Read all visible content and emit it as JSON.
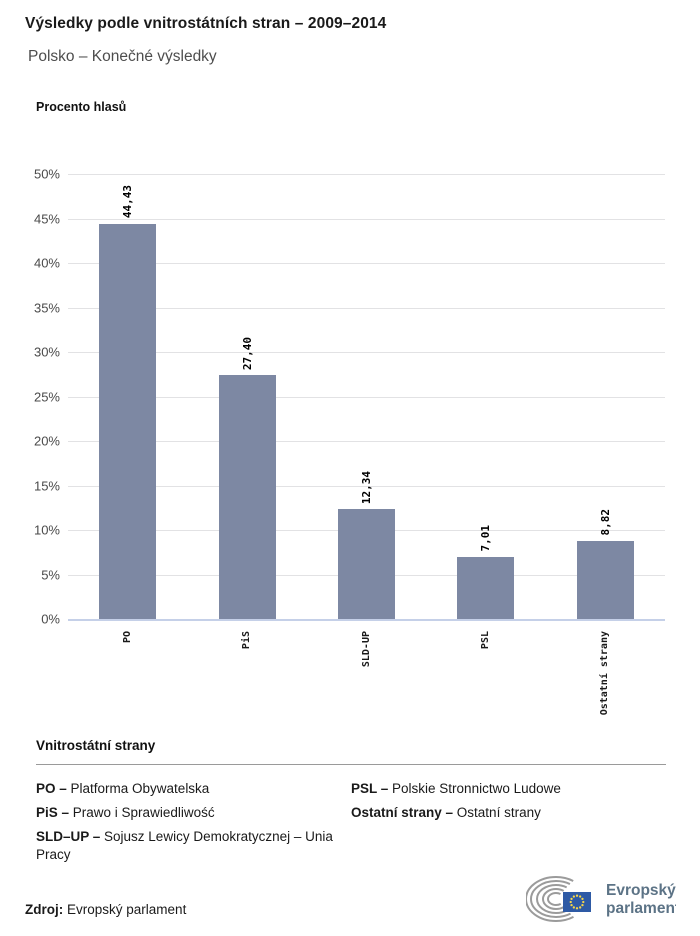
{
  "header": {
    "title": "Výsledky podle vnitrostátních stran – 2009–2014",
    "subtitle": "Polsko – Konečné výsledky"
  },
  "chart": {
    "axis_title": "Procento hlasů",
    "y_ticks": [
      "50%",
      "45%",
      "40%",
      "35%",
      "30%",
      "25%",
      "20%",
      "15%",
      "10%",
      "5%",
      "0%"
    ]
  },
  "chart_data": {
    "type": "bar",
    "categories": [
      "PO",
      "PiS",
      "SLD-UP",
      "PSL",
      "Ostatní strany"
    ],
    "values": [
      44.43,
      27.4,
      12.34,
      7.01,
      8.82
    ],
    "value_labels": [
      "44,43",
      "27,40",
      "12,34",
      "7,01",
      "8,82"
    ],
    "title": "Výsledky podle vnitrostátních stran – 2009–2014",
    "subtitle": "Polsko – Konečné výsledky",
    "xlabel": "",
    "ylabel": "Procento hlasů",
    "ylim": [
      0,
      50
    ],
    "grid": true,
    "legend_position": "none",
    "bar_color": "#7d88a3"
  },
  "legend": {
    "heading": "Vnitrostátní strany",
    "columns": [
      [
        {
          "abbr": "PO –",
          "name": "Platforma Obywatelska"
        },
        {
          "abbr": "PiS –",
          "name": "Prawo i Sprawiedliwość"
        },
        {
          "abbr": "SLD–UP –",
          "name": "Sojusz Lewicy Demokratycznej – Unia Pracy"
        }
      ],
      [
        {
          "abbr": "PSL –",
          "name": "Polskie Stronnictwo Ludowe"
        },
        {
          "abbr": "Ostatní strany –",
          "name": "Ostatní strany"
        }
      ]
    ]
  },
  "footer": {
    "source_label": "Zdroj:",
    "source_text": "Evropský parlament",
    "logo": {
      "line1": "Evropský",
      "line2": "parlament",
      "flag_color": "#2e5aa5",
      "star_color": "#f8d648",
      "arc_color": "#9b9b9b",
      "text_color": "#5c7386"
    }
  }
}
